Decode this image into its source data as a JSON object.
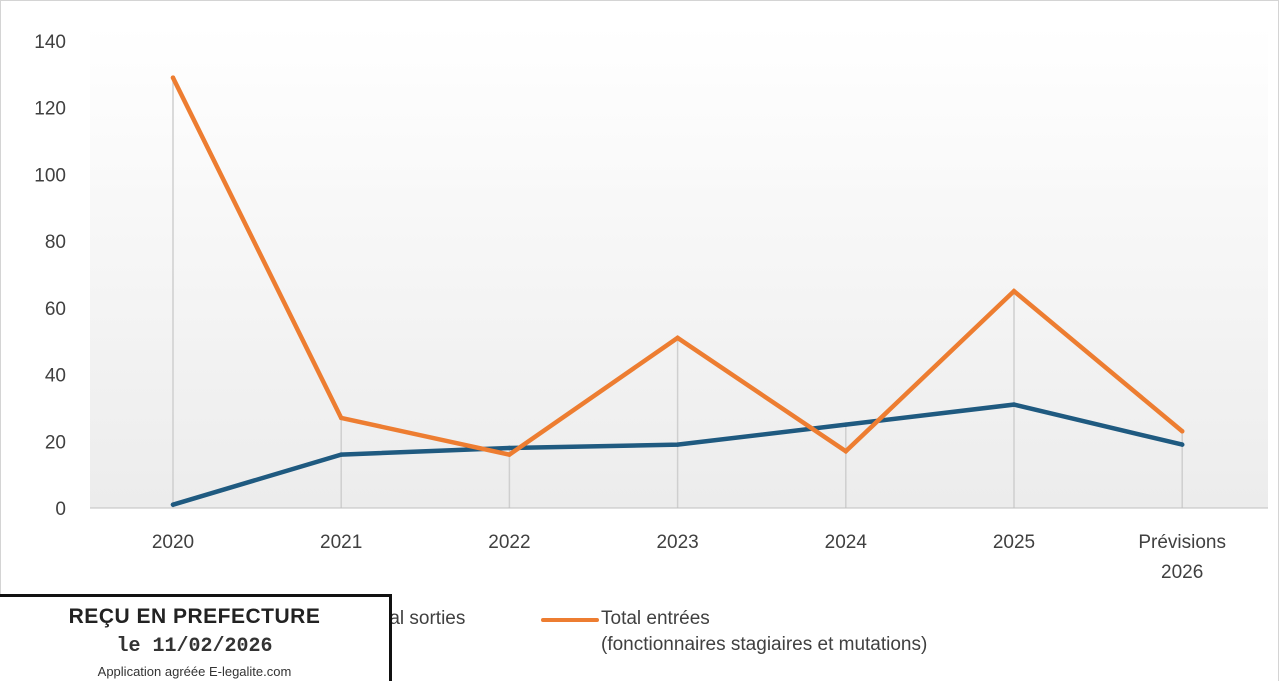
{
  "chart_data": {
    "type": "line",
    "categories": [
      "2020",
      "2021",
      "2022",
      "2023",
      "2024",
      "2025",
      "Prévisions 2026"
    ],
    "series": [
      {
        "name": "Total sorties",
        "color": "#1f5a80",
        "values": [
          1,
          16,
          18,
          19,
          25,
          31,
          19
        ]
      },
      {
        "name": "Total entrées (fonctionnaires stagiaires et mutations)",
        "color": "#ed7d31",
        "values": [
          129,
          27,
          16,
          51,
          17,
          65,
          23
        ]
      }
    ],
    "ylim": [
      0,
      140
    ],
    "yticks": [
      0,
      20,
      40,
      60,
      80,
      100,
      120,
      140
    ],
    "grid": "vertical drop lines at each category",
    "legend_position": "bottom"
  },
  "legend": {
    "sorties_label": "Total sorties",
    "entrees_label_line1": "Total entrées",
    "entrees_label_line2": "(fonctionnaires stagiaires et mutations)"
  },
  "x_labels": {
    "c0": "2020",
    "c1": "2021",
    "c2": "2022",
    "c3": "2023",
    "c4": "2024",
    "c5": "2025",
    "c6_line1": "Prévisions",
    "c6_line2": "2026"
  },
  "stamp": {
    "title": "REÇU EN PREFECTURE",
    "date": "le 11/02/2026",
    "app": "Application agréée E-legalite.com"
  }
}
